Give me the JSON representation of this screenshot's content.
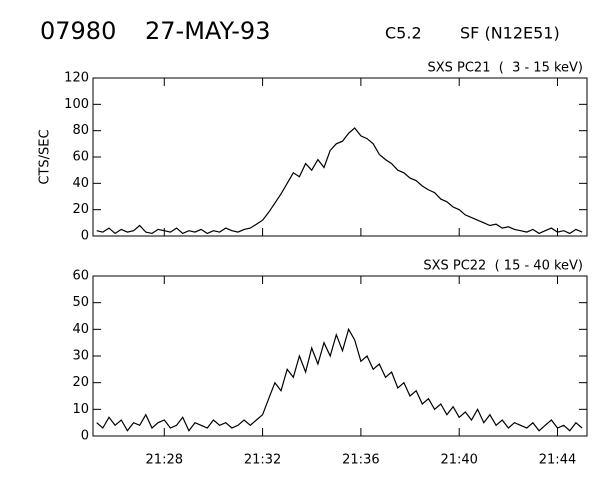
{
  "header": {
    "id": "07980",
    "date": "27-MAY-93",
    "class": "C5.2",
    "event": "SF (N12E51)"
  },
  "chart_data": [
    {
      "type": "line",
      "title": "SXS PC21  (  3 - 15 keV)",
      "y_label": "CTS/SEC",
      "color": "#000000",
      "xlim": [
        1285.1,
        1305.2
      ],
      "ylim": [
        0,
        120
      ],
      "yticks": [
        0,
        20,
        40,
        60,
        80,
        100,
        120
      ],
      "x": [
        1285.25,
        1285.5,
        1285.75,
        1286,
        1286.25,
        1286.5,
        1286.75,
        1287,
        1287.25,
        1287.5,
        1287.75,
        1288,
        1288.25,
        1288.5,
        1288.75,
        1289,
        1289.25,
        1289.5,
        1289.75,
        1290,
        1290.25,
        1290.5,
        1290.75,
        1291,
        1291.25,
        1291.5,
        1291.75,
        1292,
        1292.25,
        1292.5,
        1292.75,
        1293,
        1293.25,
        1293.5,
        1293.75,
        1294,
        1294.25,
        1294.5,
        1294.75,
        1295,
        1295.25,
        1295.5,
        1295.75,
        1296,
        1296.25,
        1296.5,
        1296.75,
        1297,
        1297.25,
        1297.5,
        1297.75,
        1298,
        1298.25,
        1298.5,
        1298.75,
        1299,
        1299.25,
        1299.5,
        1299.75,
        1300,
        1300.25,
        1300.5,
        1300.75,
        1301,
        1301.25,
        1301.5,
        1301.75,
        1302,
        1302.25,
        1302.5,
        1302.75,
        1303,
        1303.25,
        1303.5,
        1303.75,
        1304,
        1304.25,
        1304.5,
        1304.75,
        1305
      ],
      "values": [
        4,
        3,
        6,
        2,
        5,
        3,
        4,
        8,
        3,
        2,
        5,
        4,
        3,
        6,
        2,
        4,
        3,
        5,
        2,
        4,
        3,
        6,
        4,
        3,
        5,
        6,
        9,
        12,
        18,
        25,
        32,
        40,
        48,
        45,
        55,
        50,
        58,
        52,
        65,
        70,
        72,
        78,
        82,
        76,
        74,
        70,
        62,
        58,
        55,
        50,
        48,
        44,
        42,
        38,
        35,
        33,
        28,
        26,
        22,
        20,
        16,
        14,
        12,
        10,
        8,
        9,
        6,
        7,
        5,
        4,
        3,
        5,
        2,
        4,
        6,
        3,
        4,
        2,
        5,
        3
      ]
    },
    {
      "type": "line",
      "title": "SXS PC22  ( 15 - 40 keV)",
      "color": "#000000",
      "xlim": [
        1285.1,
        1305.2
      ],
      "ylim": [
        0,
        60
      ],
      "yticks": [
        0,
        10,
        20,
        30,
        40,
        50,
        60
      ],
      "xticks": [
        {
          "value": 1288,
          "label": "21:28"
        },
        {
          "value": 1292,
          "label": "21:32"
        },
        {
          "value": 1296,
          "label": "21:36"
        },
        {
          "value": 1300,
          "label": "21:40"
        },
        {
          "value": 1304,
          "label": "21:44"
        }
      ],
      "x": [
        1285.25,
        1285.5,
        1285.75,
        1286,
        1286.25,
        1286.5,
        1286.75,
        1287,
        1287.25,
        1287.5,
        1287.75,
        1288,
        1288.25,
        1288.5,
        1288.75,
        1289,
        1289.25,
        1289.5,
        1289.75,
        1290,
        1290.25,
        1290.5,
        1290.75,
        1291,
        1291.25,
        1291.5,
        1291.75,
        1292,
        1292.25,
        1292.5,
        1292.75,
        1293,
        1293.25,
        1293.5,
        1293.75,
        1294,
        1294.25,
        1294.5,
        1294.75,
        1295,
        1295.25,
        1295.5,
        1295.75,
        1296,
        1296.25,
        1296.5,
        1296.75,
        1297,
        1297.25,
        1297.5,
        1297.75,
        1298,
        1298.25,
        1298.5,
        1298.75,
        1299,
        1299.25,
        1299.5,
        1299.75,
        1300,
        1300.25,
        1300.5,
        1300.75,
        1301,
        1301.25,
        1301.5,
        1301.75,
        1302,
        1302.25,
        1302.5,
        1302.75,
        1303,
        1303.25,
        1303.5,
        1303.75,
        1304,
        1304.25,
        1304.5,
        1304.75,
        1305
      ],
      "values": [
        5,
        3,
        7,
        4,
        6,
        2,
        5,
        4,
        8,
        3,
        5,
        6,
        3,
        4,
        7,
        2,
        5,
        4,
        3,
        6,
        4,
        5,
        3,
        4,
        6,
        4,
        6,
        8,
        14,
        20,
        17,
        25,
        22,
        30,
        24,
        33,
        27,
        35,
        30,
        38,
        32,
        40,
        36,
        28,
        30,
        25,
        27,
        22,
        24,
        18,
        20,
        15,
        17,
        12,
        14,
        10,
        12,
        8,
        11,
        7,
        9,
        6,
        10,
        5,
        8,
        4,
        6,
        3,
        5,
        4,
        3,
        5,
        2,
        4,
        6,
        3,
        4,
        2,
        5,
        3
      ]
    }
  ]
}
